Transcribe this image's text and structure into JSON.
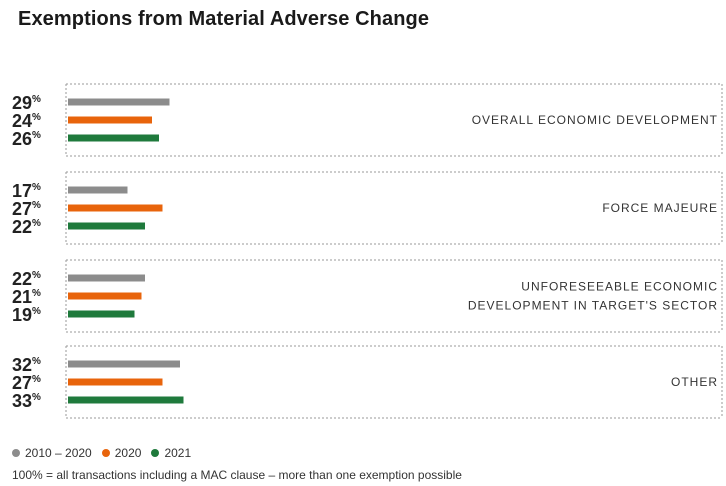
{
  "title": "Exemptions from Material Adverse Change",
  "footnote": "100% = all transactions including a MAC clause – more than one exemption possible",
  "chart_data": {
    "type": "bar",
    "orientation": "horizontal",
    "title": "Exemptions from Material Adverse Change",
    "unit": "%",
    "categories": [
      [
        "OVERALL ECONOMIC DEVELOPMENT"
      ],
      [
        "FORCE MAJEURE"
      ],
      [
        "UNFORESEEABLE ECONOMIC",
        "DEVELOPMENT IN TARGET'S SECTOR"
      ],
      [
        "OTHER"
      ]
    ],
    "series": [
      {
        "name": "2010 – 2020",
        "color": "#8c8c8c",
        "values": [
          29,
          17,
          22,
          32
        ]
      },
      {
        "name": "2020",
        "color": "#e8640c",
        "values": [
          24,
          27,
          21,
          27
        ]
      },
      {
        "name": "2021",
        "color": "#1f7a3c",
        "values": [
          26,
          22,
          19,
          33
        ]
      }
    ],
    "legend_position": "bottom-left",
    "grid": false
  }
}
